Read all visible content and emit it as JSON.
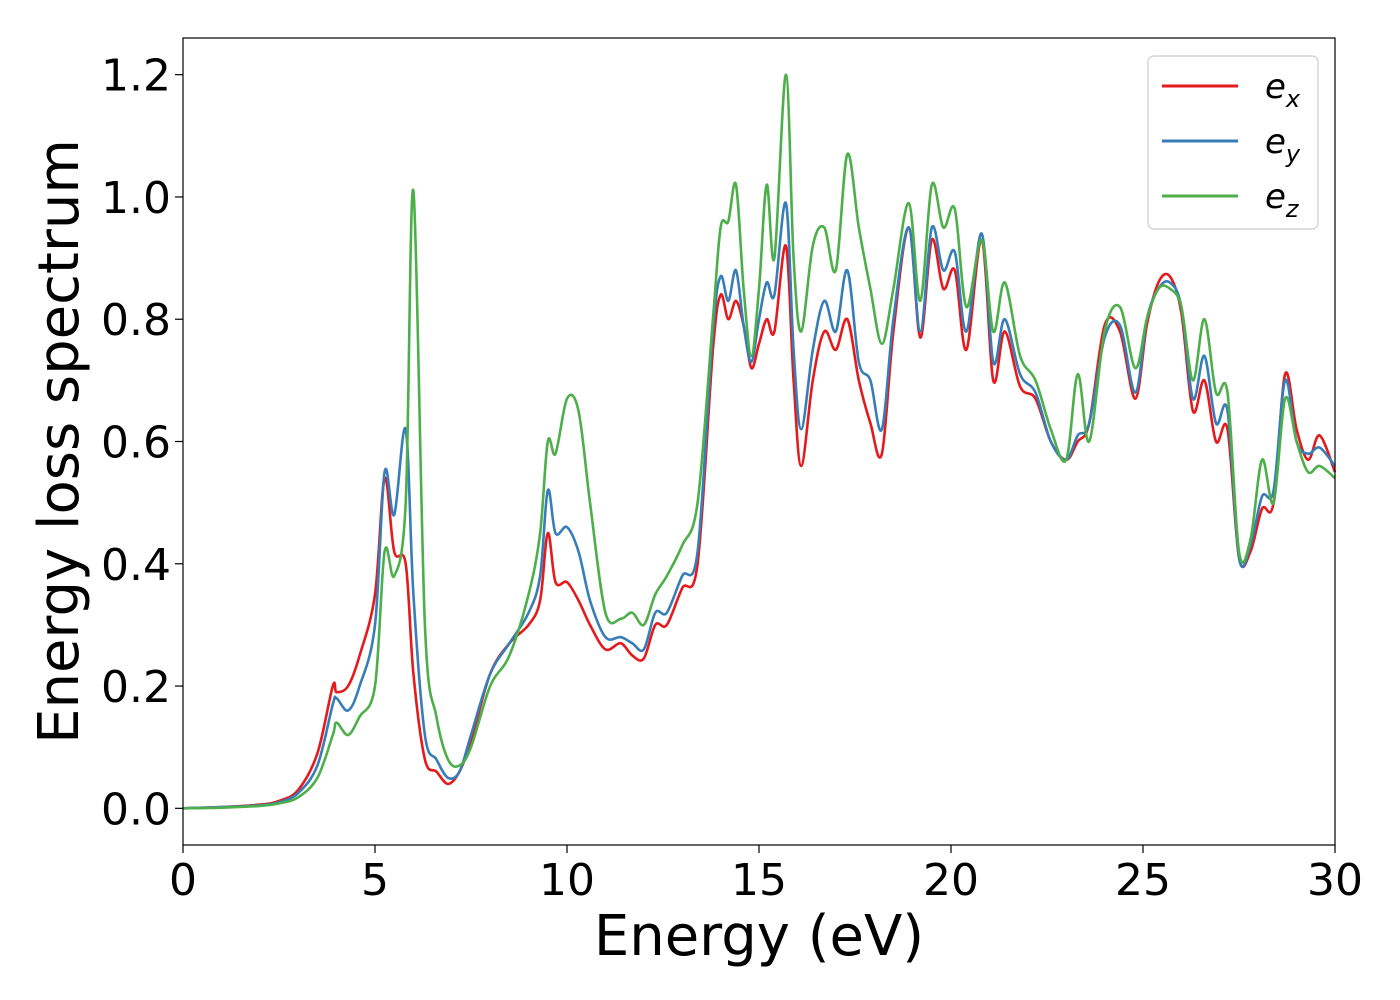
{
  "chart_data": {
    "type": "line",
    "xlabel": "Energy (eV)",
    "ylabel": "Energy loss spectrum",
    "xlim": [
      0,
      30
    ],
    "ylim": [
      -0.06,
      1.26
    ],
    "xticks": [
      0,
      5,
      10,
      15,
      20,
      25,
      30
    ],
    "xtick_labels": [
      "0",
      "5",
      "10",
      "15",
      "20",
      "25",
      "30"
    ],
    "yticks": [
      0.0,
      0.2,
      0.4,
      0.6,
      0.8,
      1.0,
      1.2
    ],
    "ytick_labels": [
      "0.0",
      "0.2",
      "0.4",
      "0.6",
      "0.8",
      "1.0",
      "1.2"
    ],
    "grid": false,
    "legend_position": "top-right",
    "series": [
      {
        "name": "e",
        "subscript": "x",
        "color": "#e41a1c",
        "x": [
          0,
          1,
          2,
          2.5,
          3,
          3.5,
          3.9,
          4.0,
          4.3,
          4.6,
          5.0,
          5.25,
          5.5,
          5.8,
          6.0,
          6.3,
          6.6,
          6.9,
          7.2,
          7.5,
          8.0,
          8.5,
          9.0,
          9.3,
          9.5,
          9.7,
          10.0,
          10.3,
          10.6,
          11.0,
          11.4,
          11.7,
          12.0,
          12.3,
          12.6,
          13.0,
          13.4,
          13.8,
          14.0,
          14.2,
          14.4,
          14.6,
          14.8,
          15.0,
          15.2,
          15.4,
          15.7,
          15.9,
          16.1,
          16.4,
          16.7,
          17.0,
          17.3,
          17.6,
          17.9,
          18.2,
          18.5,
          18.9,
          19.2,
          19.5,
          19.8,
          20.1,
          20.4,
          20.8,
          21.1,
          21.4,
          21.8,
          22.2,
          22.6,
          23.0,
          23.3,
          23.6,
          24.0,
          24.4,
          24.8,
          25.1,
          25.4,
          25.7,
          26.0,
          26.3,
          26.6,
          26.9,
          27.2,
          27.5,
          27.8,
          28.1,
          28.4,
          28.7,
          29.0,
          29.3,
          29.6,
          30.0
        ],
        "values": [
          0.0,
          0.002,
          0.006,
          0.012,
          0.03,
          0.09,
          0.2,
          0.19,
          0.2,
          0.25,
          0.35,
          0.54,
          0.42,
          0.4,
          0.22,
          0.08,
          0.06,
          0.04,
          0.06,
          0.11,
          0.22,
          0.27,
          0.3,
          0.34,
          0.45,
          0.37,
          0.37,
          0.34,
          0.3,
          0.26,
          0.27,
          0.25,
          0.245,
          0.3,
          0.3,
          0.36,
          0.4,
          0.75,
          0.84,
          0.8,
          0.83,
          0.79,
          0.72,
          0.76,
          0.8,
          0.78,
          0.92,
          0.7,
          0.56,
          0.7,
          0.78,
          0.75,
          0.8,
          0.7,
          0.63,
          0.58,
          0.78,
          0.95,
          0.77,
          0.93,
          0.85,
          0.88,
          0.75,
          0.93,
          0.7,
          0.78,
          0.69,
          0.67,
          0.6,
          0.57,
          0.6,
          0.63,
          0.79,
          0.78,
          0.67,
          0.79,
          0.86,
          0.87,
          0.81,
          0.65,
          0.7,
          0.6,
          0.62,
          0.41,
          0.42,
          0.49,
          0.5,
          0.71,
          0.62,
          0.57,
          0.61,
          0.55
        ]
      },
      {
        "name": "e",
        "subscript": "y",
        "color": "#377eb8",
        "x": [
          0,
          1,
          2,
          2.5,
          3,
          3.5,
          3.9,
          4.0,
          4.3,
          4.6,
          5.0,
          5.25,
          5.5,
          5.8,
          6.0,
          6.3,
          6.6,
          6.9,
          7.2,
          7.5,
          8.0,
          8.5,
          9.0,
          9.3,
          9.5,
          9.7,
          10.0,
          10.3,
          10.6,
          11.0,
          11.4,
          11.7,
          12.0,
          12.3,
          12.6,
          13.0,
          13.4,
          13.8,
          14.0,
          14.2,
          14.4,
          14.6,
          14.8,
          15.0,
          15.2,
          15.4,
          15.7,
          15.9,
          16.1,
          16.4,
          16.7,
          17.0,
          17.3,
          17.6,
          17.9,
          18.2,
          18.5,
          18.9,
          19.2,
          19.5,
          19.8,
          20.1,
          20.4,
          20.8,
          21.1,
          21.4,
          21.8,
          22.2,
          22.6,
          23.0,
          23.3,
          23.6,
          24.0,
          24.4,
          24.8,
          25.1,
          25.4,
          25.7,
          26.0,
          26.3,
          26.6,
          26.9,
          27.2,
          27.5,
          27.8,
          28.1,
          28.4,
          28.7,
          29.0,
          29.3,
          29.6,
          30.0
        ],
        "values": [
          0.0,
          0.002,
          0.005,
          0.01,
          0.025,
          0.07,
          0.17,
          0.18,
          0.16,
          0.2,
          0.3,
          0.55,
          0.48,
          0.62,
          0.35,
          0.12,
          0.08,
          0.05,
          0.06,
          0.12,
          0.22,
          0.27,
          0.32,
          0.38,
          0.52,
          0.45,
          0.46,
          0.42,
          0.34,
          0.28,
          0.28,
          0.27,
          0.26,
          0.32,
          0.32,
          0.38,
          0.42,
          0.78,
          0.87,
          0.83,
          0.88,
          0.79,
          0.73,
          0.8,
          0.86,
          0.84,
          0.99,
          0.75,
          0.62,
          0.75,
          0.83,
          0.78,
          0.88,
          0.73,
          0.7,
          0.62,
          0.8,
          0.95,
          0.78,
          0.95,
          0.88,
          0.91,
          0.78,
          0.94,
          0.73,
          0.8,
          0.71,
          0.68,
          0.6,
          0.57,
          0.61,
          0.63,
          0.77,
          0.79,
          0.68,
          0.8,
          0.85,
          0.86,
          0.82,
          0.67,
          0.74,
          0.63,
          0.65,
          0.41,
          0.43,
          0.51,
          0.52,
          0.7,
          0.6,
          0.58,
          0.59,
          0.56
        ]
      },
      {
        "name": "e",
        "subscript": "z",
        "color": "#4daf4a",
        "x": [
          0,
          1,
          2,
          2.5,
          3,
          3.5,
          3.9,
          4.0,
          4.3,
          4.6,
          5.0,
          5.25,
          5.5,
          5.8,
          6.0,
          6.3,
          6.6,
          6.9,
          7.2,
          7.5,
          8.0,
          8.5,
          9.0,
          9.3,
          9.5,
          9.7,
          10.0,
          10.3,
          10.6,
          11.0,
          11.4,
          11.7,
          12.0,
          12.3,
          12.6,
          13.0,
          13.4,
          13.8,
          14.0,
          14.2,
          14.4,
          14.6,
          14.8,
          15.0,
          15.2,
          15.4,
          15.7,
          15.9,
          16.1,
          16.4,
          16.7,
          17.0,
          17.3,
          17.6,
          17.9,
          18.2,
          18.5,
          18.9,
          19.2,
          19.5,
          19.8,
          20.1,
          20.4,
          20.8,
          21.1,
          21.4,
          21.8,
          22.2,
          22.6,
          23.0,
          23.3,
          23.6,
          24.0,
          24.4,
          24.8,
          25.1,
          25.4,
          25.7,
          26.0,
          26.3,
          26.6,
          26.9,
          27.2,
          27.5,
          27.8,
          28.1,
          28.4,
          28.7,
          29.0,
          29.3,
          29.6,
          30.0
        ],
        "values": [
          0.0,
          0.001,
          0.004,
          0.008,
          0.018,
          0.05,
          0.12,
          0.14,
          0.12,
          0.15,
          0.2,
          0.42,
          0.38,
          0.5,
          1.01,
          0.3,
          0.15,
          0.08,
          0.07,
          0.1,
          0.2,
          0.25,
          0.35,
          0.45,
          0.6,
          0.58,
          0.67,
          0.65,
          0.5,
          0.32,
          0.31,
          0.32,
          0.3,
          0.35,
          0.38,
          0.43,
          0.5,
          0.8,
          0.95,
          0.96,
          1.02,
          0.85,
          0.74,
          0.85,
          1.02,
          0.9,
          1.2,
          0.9,
          0.78,
          0.92,
          0.95,
          0.88,
          1.07,
          0.95,
          0.85,
          0.76,
          0.85,
          0.99,
          0.83,
          1.02,
          0.95,
          0.98,
          0.82,
          0.93,
          0.78,
          0.86,
          0.74,
          0.7,
          0.62,
          0.57,
          0.71,
          0.6,
          0.78,
          0.82,
          0.72,
          0.8,
          0.85,
          0.85,
          0.82,
          0.7,
          0.8,
          0.68,
          0.68,
          0.42,
          0.44,
          0.57,
          0.5,
          0.67,
          0.6,
          0.55,
          0.56,
          0.54
        ]
      }
    ]
  }
}
